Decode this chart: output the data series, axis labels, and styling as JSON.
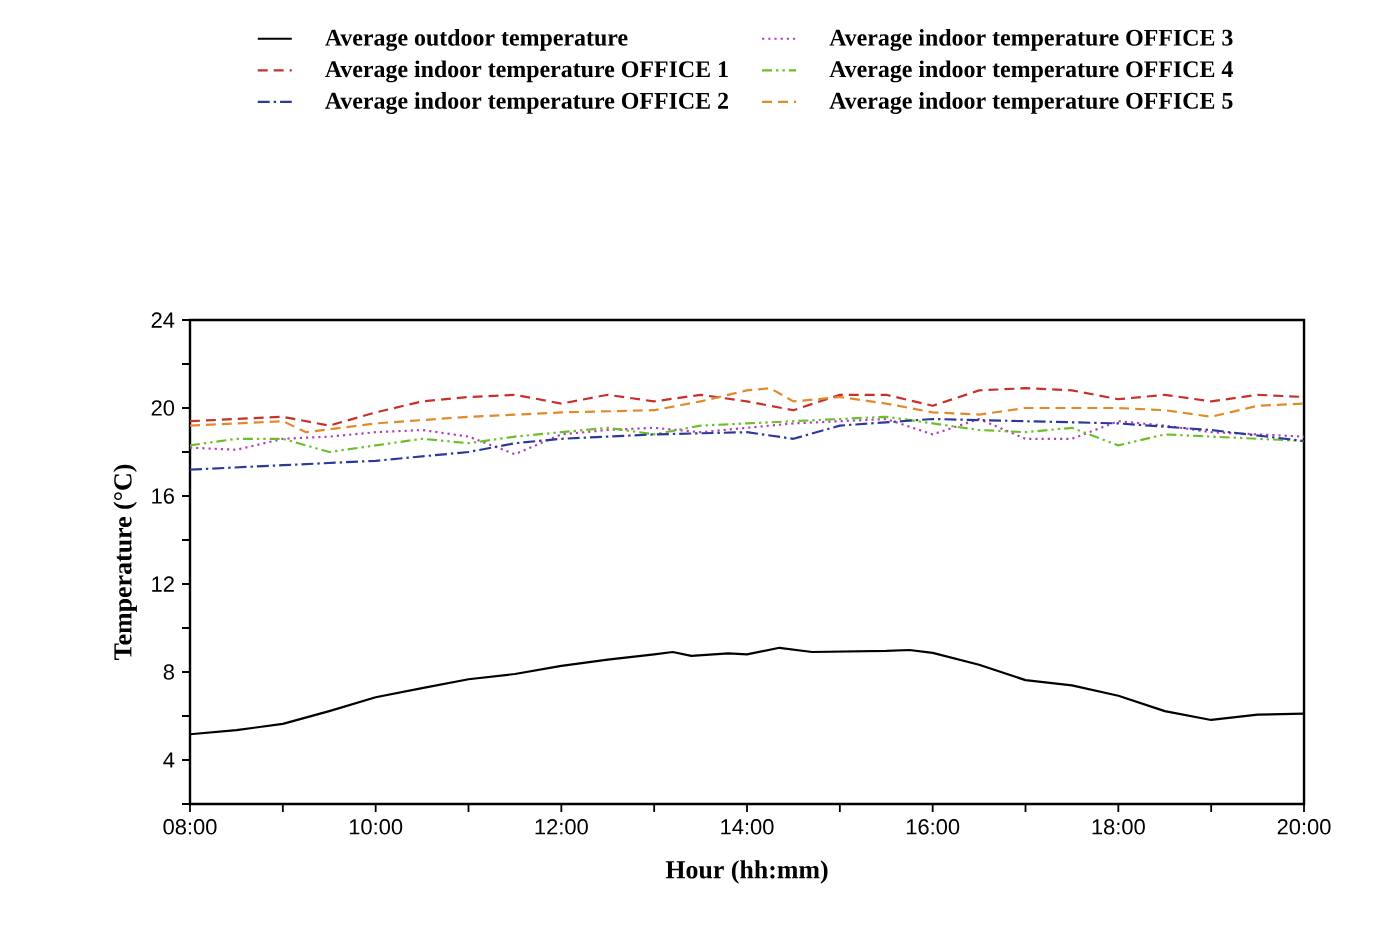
{
  "chart_data": {
    "type": "line",
    "xlabel": "Hour (hh:mm)",
    "ylabel": "Temperature (°C)",
    "xlim": [
      8,
      20
    ],
    "ylim": [
      2,
      24
    ],
    "xticks": [
      {
        "value": 8,
        "label": "08:00"
      },
      {
        "value": 9,
        "label": null
      },
      {
        "value": 10,
        "label": "10:00"
      },
      {
        "value": 11,
        "label": null
      },
      {
        "value": 12,
        "label": "12:00"
      },
      {
        "value": 13,
        "label": null
      },
      {
        "value": 14,
        "label": "14:00"
      },
      {
        "value": 15,
        "label": null
      },
      {
        "value": 16,
        "label": "16:00"
      },
      {
        "value": 17,
        "label": null
      },
      {
        "value": 18,
        "label": "18:00"
      },
      {
        "value": 19,
        "label": null
      },
      {
        "value": 20,
        "label": "20:00"
      }
    ],
    "yticks": [
      {
        "value": 2,
        "label": null
      },
      4,
      {
        "value": 6,
        "label": null
      },
      8,
      {
        "value": 10,
        "label": null
      },
      12,
      {
        "value": 14,
        "label": null
      },
      16,
      {
        "value": 18,
        "label": null
      },
      20,
      {
        "value": 22,
        "label": null
      },
      24
    ],
    "grid": false,
    "legend": "top",
    "marker": "none",
    "series": [
      {
        "name": "Average outdoor temperature",
        "color": "#000000",
        "line_style": "solid",
        "x": [
          8,
          8.5,
          9,
          9.5,
          10,
          10.5,
          11,
          11.5,
          12,
          12.5,
          13,
          13.2,
          13.4,
          13.8,
          14,
          14.35,
          14.7,
          15.5,
          15.75,
          16,
          16.5,
          17,
          17.5,
          18,
          18.5,
          19,
          19.5,
          20
        ],
        "values": [
          5.17,
          5.36,
          5.64,
          6.22,
          6.85,
          7.27,
          7.67,
          7.91,
          8.28,
          8.56,
          8.8,
          8.91,
          8.73,
          8.85,
          8.8,
          9.1,
          8.91,
          8.96,
          9.0,
          8.87,
          8.33,
          7.63,
          7.39,
          6.92,
          6.22,
          5.82,
          6.06,
          6.11
        ]
      },
      {
        "name": "Average indoor temperature OFFICE 1",
        "color": "#c8302c",
        "line_style": "dashed",
        "x": [
          8,
          9,
          9.5,
          10,
          10.5,
          11,
          11.5,
          12,
          12.5,
          13,
          13.5,
          14,
          14.5,
          15,
          15.5,
          16,
          16.5,
          17,
          17.5,
          18,
          18.5,
          19,
          19.5,
          20
        ],
        "values": [
          19.4,
          19.6,
          19.2,
          19.8,
          20.3,
          20.5,
          20.6,
          20.2,
          20.6,
          20.3,
          20.6,
          20.3,
          19.9,
          20.6,
          20.6,
          20.1,
          20.8,
          20.9,
          20.8,
          20.4,
          20.6,
          20.3,
          20.6,
          20.5
        ]
      },
      {
        "name": "Average indoor temperature OFFICE 2",
        "color": "#2b3a9a",
        "line_style": "dashdot",
        "x": [
          8,
          9,
          10,
          11,
          11.5,
          12,
          13,
          14,
          14.5,
          15,
          16,
          17,
          18,
          19,
          20
        ],
        "values": [
          17.2,
          17.4,
          17.6,
          18.0,
          18.4,
          18.6,
          18.8,
          18.9,
          18.6,
          19.2,
          19.5,
          19.4,
          19.3,
          19.0,
          18.5
        ]
      },
      {
        "name": "Average indoor temperature OFFICE 3",
        "color": "#b040c0",
        "line_style": "dotted",
        "x": [
          8,
          8.5,
          9,
          9.5,
          10,
          10.5,
          11,
          11.5,
          12,
          12.5,
          13,
          13.5,
          14,
          14.5,
          15,
          15.5,
          16,
          16.5,
          17,
          17.5,
          18,
          18.5,
          19,
          19.5,
          20
        ],
        "values": [
          18.2,
          18.1,
          18.6,
          18.7,
          18.9,
          19.0,
          18.7,
          17.9,
          18.8,
          19.0,
          19.1,
          18.9,
          19.1,
          19.3,
          19.4,
          19.5,
          18.8,
          19.5,
          18.6,
          18.6,
          19.4,
          19.2,
          18.9,
          18.8,
          18.7
        ]
      },
      {
        "name": "Average indoor temperature OFFICE 4",
        "color": "#6cbf2a",
        "line_style": "dashdotdot",
        "x": [
          8,
          8.5,
          9,
          9.5,
          10,
          10.5,
          11,
          11.5,
          12,
          12.5,
          13,
          13.5,
          14,
          15,
          15.5,
          16,
          16.5,
          17,
          17.5,
          18,
          18.5,
          19,
          19.5,
          20
        ],
        "values": [
          18.3,
          18.6,
          18.6,
          18.0,
          18.3,
          18.6,
          18.4,
          18.7,
          18.9,
          19.1,
          18.8,
          19.2,
          19.3,
          19.5,
          19.6,
          19.3,
          19.0,
          18.9,
          19.1,
          18.3,
          18.8,
          18.7,
          18.6,
          18.5
        ]
      },
      {
        "name": "Average indoor temperature OFFICE 5",
        "color": "#e08a2a",
        "line_style": "dashed",
        "x": [
          8,
          9,
          9.25,
          10,
          11,
          12,
          13,
          13.5,
          14,
          14.25,
          14.5,
          15,
          15.5,
          16,
          16.5,
          17,
          18,
          18.5,
          19,
          19.5,
          20
        ],
        "values": [
          19.2,
          19.4,
          18.9,
          19.3,
          19.6,
          19.8,
          19.9,
          20.3,
          20.8,
          20.9,
          20.3,
          20.5,
          20.2,
          19.8,
          19.7,
          20.0,
          20.0,
          19.9,
          19.6,
          20.1,
          20.2
        ]
      }
    ]
  }
}
